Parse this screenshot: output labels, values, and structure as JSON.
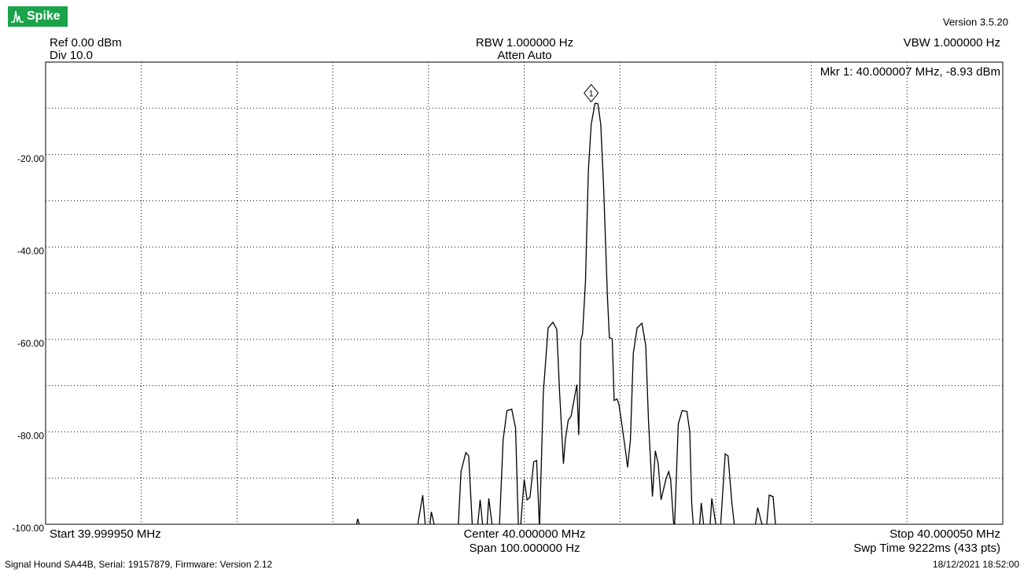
{
  "app": {
    "logo": "Spike",
    "version": "Version 3.5.20"
  },
  "chart_data": {
    "type": "line",
    "ref": "Ref 0.00 dBm",
    "div": "Div 10.0",
    "rbw": "RBW 1.000000 Hz",
    "atten": "Atten Auto",
    "vbw": "VBW 1.000000 Hz",
    "start": "Start 39.999950 MHz",
    "center": "Center 40.000000 MHz",
    "span": "Span 100.000000 Hz",
    "stop": "Stop 40.000050 MHz",
    "sweep": "Swp Time 9222ms (433 pts)",
    "marker": {
      "label": "1",
      "text": "Mkr 1: 40.000007 MHz, -8.93 dBm",
      "x": 40.000007,
      "y": -8.93
    },
    "color": "#000000",
    "xlim": [
      39.99995,
      40.00005
    ],
    "ylim": [
      -100,
      0
    ],
    "yticks": [
      {
        "value": -20,
        "label": "-20.00"
      },
      {
        "value": -40,
        "label": "-40.00"
      },
      {
        "value": -60,
        "label": "-60.00"
      },
      {
        "value": -80,
        "label": "-80.00"
      },
      {
        "value": -100,
        "label": "-100.00"
      }
    ],
    "ygrid": [
      -10,
      -20,
      -30,
      -40,
      -50,
      -60,
      -70,
      -80,
      -90
    ],
    "xgrid": [
      39.99996,
      39.99997,
      39.99998,
      39.99999,
      40.0,
      40.00001,
      40.00002,
      40.00003,
      40.00004
    ],
    "x": [
      39.9999824,
      39.9999826,
      39.9999829,
      39.9999888,
      39.9999894,
      39.9999897,
      39.9999901,
      39.9999903,
      39.9999907,
      39.9999931,
      39.9999934,
      39.9999939,
      39.9999942,
      39.9999946,
      39.9999951,
      39.9999954,
      39.9999957,
      39.9999961,
      39.9999963,
      39.9999967,
      39.9999974,
      39.9999978,
      39.9999982,
      39.9999987,
      39.9999991,
      39.9999994,
      39.9999996,
      40.0,
      40.0000003,
      40.0000006,
      40.000001,
      40.0000013,
      40.0000016,
      40.000002,
      40.0000025,
      40.000003,
      40.0000034,
      40.0000037,
      40.0000041,
      40.0000043,
      40.0000046,
      40.0000049,
      40.0000052,
      40.0000055,
      40.0000057,
      40.0000059,
      40.0000061,
      40.0000064,
      40.0000067,
      40.000007,
      40.0000074,
      40.0000077,
      40.000008,
      40.0000083,
      40.0000087,
      40.0000089,
      40.0000092,
      40.0000094,
      40.0000097,
      40.0000099,
      40.0000102,
      40.0000106,
      40.0000108,
      40.0000111,
      40.0000114,
      40.0000118,
      40.0000123,
      40.0000127,
      40.000013,
      40.0000134,
      40.0000137,
      40.000014,
      40.0000143,
      40.0000148,
      40.0000151,
      40.0000153,
      40.0000156,
      40.0000157,
      40.0000161,
      40.0000165,
      40.000017,
      40.0000173,
      40.0000175,
      40.0000177,
      40.0000183,
      40.0000185,
      40.0000188,
      40.0000194,
      40.0000196,
      40.0000198,
      40.0000201,
      40.0000205,
      40.000021,
      40.0000213,
      40.0000217,
      40.000022,
      40.0000241,
      40.0000244,
      40.0000248,
      40.0000253,
      40.0000256,
      40.000026,
      40.0000263
    ],
    "values": [
      -101,
      -98.8,
      -101,
      -101,
      -93.7,
      -101,
      -101,
      -97.3,
      -101,
      -101,
      -88.6,
      -84.5,
      -85.2,
      -101,
      -101,
      -94.7,
      -101,
      -101,
      -94.4,
      -101,
      -101,
      -81.7,
      -75.4,
      -75.1,
      -79.2,
      -101,
      -101,
      -90.3,
      -94.7,
      -94.2,
      -86.5,
      -86.2,
      -101,
      -71.5,
      -57.5,
      -56.3,
      -57.8,
      -71.5,
      -86.9,
      -81.7,
      -77.5,
      -76.6,
      -73.2,
      -69.8,
      -80.7,
      -60.4,
      -58.7,
      -47.6,
      -23.7,
      -13.5,
      -8.9,
      -9.0,
      -13.5,
      -27.1,
      -50.9,
      -59.6,
      -59.9,
      -73.2,
      -72.9,
      -74.1,
      -78.3,
      -84.3,
      -87.7,
      -81.7,
      -63.0,
      -57.5,
      -56.5,
      -61.3,
      -78.3,
      -94.0,
      -84.1,
      -86.9,
      -94.7,
      -90.3,
      -88.6,
      -90.3,
      -99.5,
      -101,
      -78.3,
      -75.4,
      -75.6,
      -80.0,
      -95.4,
      -101,
      -101,
      -95.4,
      -101,
      -101,
      -94.4,
      -97.1,
      -101,
      -101,
      -84.8,
      -85.2,
      -95.4,
      -101,
      -101,
      -96.4,
      -99.7,
      -101,
      -93.7,
      -94.0,
      -101
    ]
  },
  "footer": {
    "device": "Signal Hound SA44B, Serial: 19157879, Firmware: Version 2.12",
    "timestamp": "18/12/2021 18:52:00"
  }
}
